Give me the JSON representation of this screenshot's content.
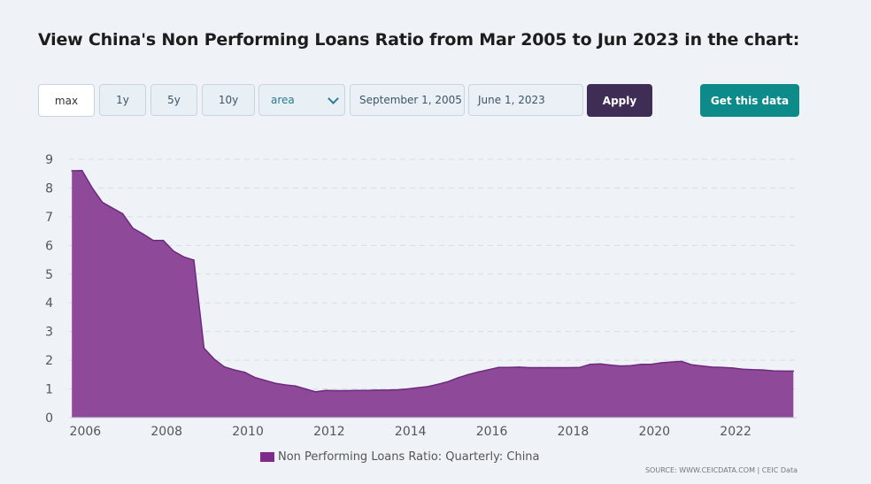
{
  "header": {
    "title": "View China's Non Performing Loans Ratio from Mar 2005 to Jun 2023 in the chart:"
  },
  "controls": {
    "range_buttons": [
      "max",
      "1y",
      "5y",
      "10y"
    ],
    "active_range": "max",
    "chart_type_value": "area",
    "start_date": "September 1, 2005",
    "end_date": "June 1, 2023",
    "apply_label": "Apply",
    "get_data_label": "Get this data"
  },
  "colors": {
    "series_fill": "#8e4a98",
    "series_line": "#6e2a7e",
    "legend_swatch": "#7f2b8a",
    "apply_bg": "#3f2d56",
    "get_data_bg": "#0d8a8a",
    "grid": "#d6dde5"
  },
  "legend": {
    "label": "Non Performing Loans Ratio: Quarterly: China"
  },
  "footer": {
    "source": "SOURCE: WWW.CEICDATA.COM | CEIC Data"
  },
  "chart_data": {
    "type": "area",
    "title": "",
    "xlabel": "",
    "ylabel": "",
    "ylim": [
      0,
      9
    ],
    "yticks": [
      0,
      1,
      2,
      3,
      4,
      5,
      6,
      7,
      8,
      9
    ],
    "xlim": [
      2005.6,
      2023.5
    ],
    "xticks": [
      "2006",
      "2008",
      "2010",
      "2012",
      "2014",
      "2016",
      "2018",
      "2020",
      "2022"
    ],
    "grid": true,
    "legend_position": "bottom-center",
    "series": [
      {
        "name": "Non Performing Loans Ratio: Quarterly: China",
        "x": [
          2005.67,
          2005.92,
          2006.17,
          2006.42,
          2006.67,
          2006.92,
          2007.17,
          2007.42,
          2007.67,
          2007.92,
          2008.17,
          2008.42,
          2008.67,
          2008.92,
          2009.17,
          2009.42,
          2009.67,
          2009.92,
          2010.17,
          2010.42,
          2010.67,
          2010.92,
          2011.17,
          2011.42,
          2011.67,
          2011.92,
          2012.17,
          2012.42,
          2012.67,
          2012.92,
          2013.17,
          2013.42,
          2013.67,
          2013.92,
          2014.17,
          2014.42,
          2014.67,
          2014.92,
          2015.17,
          2015.42,
          2015.67,
          2015.92,
          2016.17,
          2016.42,
          2016.67,
          2016.92,
          2017.17,
          2017.42,
          2017.67,
          2017.92,
          2018.17,
          2018.42,
          2018.67,
          2018.92,
          2019.17,
          2019.42,
          2019.67,
          2019.92,
          2020.17,
          2020.42,
          2020.67,
          2020.92,
          2021.17,
          2021.42,
          2021.67,
          2021.92,
          2022.17,
          2022.42,
          2022.67,
          2022.92,
          2023.17,
          2023.42
        ],
        "values": [
          8.6,
          8.61,
          8.0,
          7.5,
          7.3,
          7.1,
          6.6,
          6.4,
          6.17,
          6.17,
          5.8,
          5.6,
          5.49,
          2.42,
          2.04,
          1.77,
          1.66,
          1.58,
          1.4,
          1.3,
          1.2,
          1.14,
          1.1,
          1.0,
          0.9,
          0.95,
          0.94,
          0.94,
          0.95,
          0.95,
          0.96,
          0.96,
          0.97,
          1.0,
          1.04,
          1.08,
          1.16,
          1.25,
          1.39,
          1.5,
          1.59,
          1.67,
          1.75,
          1.75,
          1.76,
          1.74,
          1.74,
          1.74,
          1.74,
          1.74,
          1.75,
          1.86,
          1.87,
          1.83,
          1.8,
          1.81,
          1.86,
          1.86,
          1.91,
          1.94,
          1.96,
          1.84,
          1.8,
          1.76,
          1.75,
          1.73,
          1.69,
          1.67,
          1.66,
          1.63,
          1.62,
          1.62
        ]
      }
    ]
  }
}
